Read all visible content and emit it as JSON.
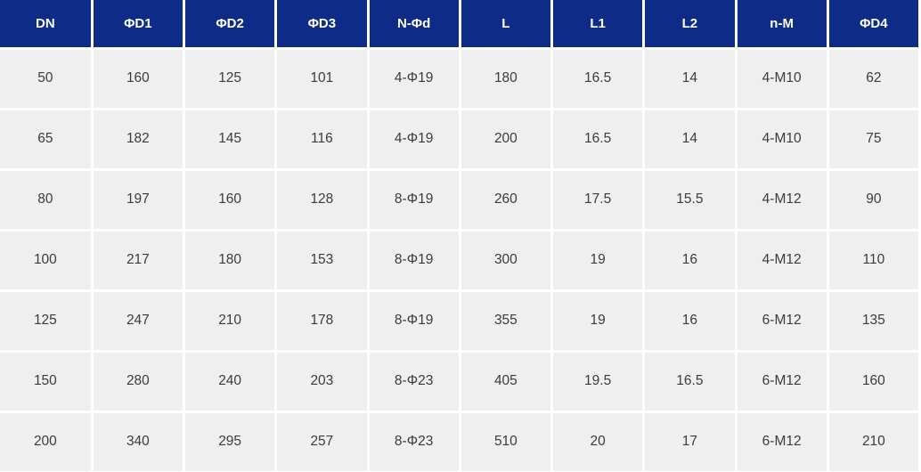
{
  "table": {
    "columns": [
      "DN",
      "ΦD1",
      "ΦD2",
      "ΦD3",
      "N-Φd",
      "L",
      "L1",
      "L2",
      "n-M",
      "ΦD4"
    ],
    "rows": [
      [
        "50",
        "160",
        "125",
        "101",
        "4-Φ19",
        "180",
        "16.5",
        "14",
        "4-M10",
        "62"
      ],
      [
        "65",
        "182",
        "145",
        "116",
        "4-Φ19",
        "200",
        "16.5",
        "14",
        "4-M10",
        "75"
      ],
      [
        "80",
        "197",
        "160",
        "128",
        "8-Φ19",
        "260",
        "17.5",
        "15.5",
        "4-M12",
        "90"
      ],
      [
        "100",
        "217",
        "180",
        "153",
        "8-Φ19",
        "300",
        "19",
        "16",
        "4-M12",
        "110"
      ],
      [
        "125",
        "247",
        "210",
        "178",
        "8-Φ19",
        "355",
        "19",
        "16",
        "6-M12",
        "135"
      ],
      [
        "150",
        "280",
        "240",
        "203",
        "8-Φ23",
        "405",
        "19.5",
        "16.5",
        "6-M12",
        "160"
      ],
      [
        "200",
        "340",
        "295",
        "257",
        "8-Φ23",
        "510",
        "20",
        "17",
        "6-M12",
        "210"
      ]
    ]
  },
  "colors": {
    "header_bg": "#0e2b87",
    "header_text": "#ffffff",
    "row_bg": "#efefef",
    "gridline": "#ffffff",
    "body_text": "#3e3b3a"
  },
  "chart_data": {
    "type": "table",
    "title": "",
    "columns": [
      "DN",
      "ΦD1",
      "ΦD2",
      "ΦD3",
      "N-Φd",
      "L",
      "L1",
      "L2",
      "n-M",
      "ΦD4"
    ],
    "rows": [
      [
        "50",
        "160",
        "125",
        "101",
        "4-Φ19",
        "180",
        "16.5",
        "14",
        "4-M10",
        "62"
      ],
      [
        "65",
        "182",
        "145",
        "116",
        "4-Φ19",
        "200",
        "16.5",
        "14",
        "4-M10",
        "75"
      ],
      [
        "80",
        "197",
        "160",
        "128",
        "8-Φ19",
        "260",
        "17.5",
        "15.5",
        "4-M12",
        "90"
      ],
      [
        "100",
        "217",
        "180",
        "153",
        "8-Φ19",
        "300",
        "19",
        "16",
        "4-M12",
        "110"
      ],
      [
        "125",
        "247",
        "210",
        "178",
        "8-Φ19",
        "355",
        "19",
        "16",
        "6-M12",
        "135"
      ],
      [
        "150",
        "280",
        "240",
        "203",
        "8-Φ23",
        "405",
        "19.5",
        "16.5",
        "6-M12",
        "160"
      ],
      [
        "200",
        "340",
        "295",
        "257",
        "8-Φ23",
        "510",
        "20",
        "17",
        "6-M12",
        "210"
      ]
    ]
  }
}
